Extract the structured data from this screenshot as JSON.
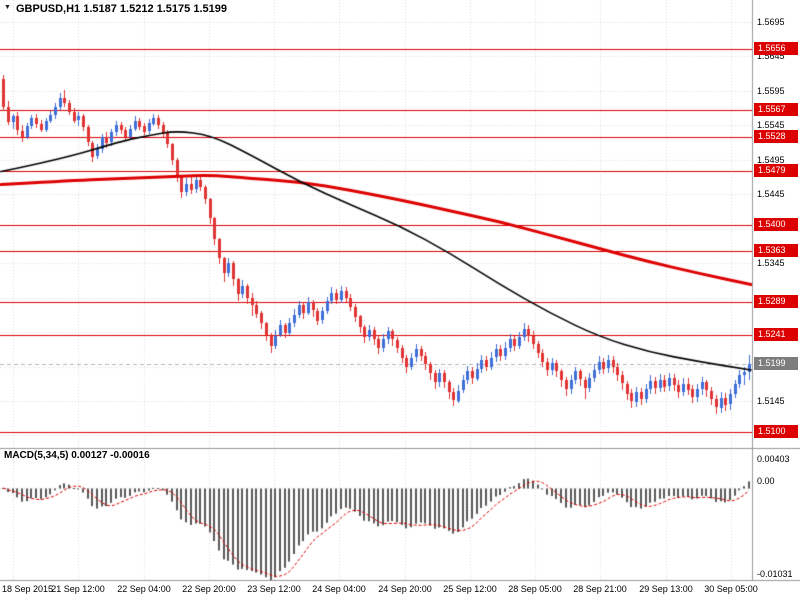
{
  "header": {
    "symbol": "GBPUSD",
    "timeframe": "H1",
    "open": "1.5187",
    "high": "1.5212",
    "low": "1.5175",
    "close": "1.5199",
    "text": "GBPUSD,H1 1.5187 1.5212 1.5175 1.5199"
  },
  "indicator": {
    "name": "MACD",
    "params": "5,34,5",
    "value": "0.00127",
    "signal_value": "-0.00016",
    "text": "MACD(5,34,5) 0.00127 -0.00016"
  },
  "colors": {
    "background": "#ffffff",
    "grid": "#dbdbdb",
    "level_line": "#dd0000",
    "candle_up": "#3f6fd8",
    "candle_down": "#e03434",
    "ma_black": "#000000",
    "ma_red": "#dd0000",
    "macd_bar": "#5a5a5a",
    "macd_signal": "#dd0000",
    "badge_level_bg": "#dd0000",
    "badge_current_bg": "#7d7d7d",
    "badge_text": "#ffffff",
    "axis_line": "#999999",
    "current_line": "#b5b5b5",
    "text": "#000000"
  },
  "chart_data": {
    "type": "candlestick",
    "title": "GBPUSD,H1",
    "price_scale": 10000,
    "current_price": 15199,
    "first_open": 15612,
    "x_labels": [
      "18 Sep 2015",
      "21 Sep 12:00",
      "22 Sep 04:00",
      "22 Sep 20:00",
      "23 Sep 12:00",
      "24 Sep 04:00",
      "24 Sep 20:00",
      "25 Sep 12:00",
      "28 Sep 05:00",
      "28 Sep 21:00",
      "29 Sep 13:00",
      "30 Sep 05:00"
    ],
    "y_axis": {
      "top_tick": 15695,
      "tick_step": 50,
      "ticks": [
        15695,
        15645,
        15595,
        15545,
        15495,
        15445,
        15395,
        15345,
        15295,
        15245,
        15195,
        15145,
        15095
      ],
      "label_ticks": [
        15695,
        15645,
        15595,
        15545,
        15495,
        15445,
        15345,
        15145
      ]
    },
    "levels": [
      15656,
      15567,
      15528,
      15479,
      15400,
      15363,
      15289,
      15241,
      15100
    ],
    "candles_hlc": [
      [
        15618,
        15566,
        15572
      ],
      [
        15580,
        15545,
        15550
      ],
      [
        15562,
        15540,
        15558
      ],
      [
        15565,
        15532,
        15537
      ],
      [
        15545,
        15520,
        15528
      ],
      [
        15548,
        15525,
        15544
      ],
      [
        15560,
        15540,
        15556
      ],
      [
        15562,
        15542,
        15547
      ],
      [
        15553,
        15535,
        15539
      ],
      [
        15556,
        15536,
        15552
      ],
      [
        15566,
        15548,
        15560
      ],
      [
        15578,
        15555,
        15572
      ],
      [
        15592,
        15568,
        15585
      ],
      [
        15596,
        15572,
        15578
      ],
      [
        15582,
        15560,
        15565
      ],
      [
        15570,
        15548,
        15552
      ],
      [
        15565,
        15545,
        15558
      ],
      [
        15562,
        15538,
        15542
      ],
      [
        15545,
        15515,
        15520
      ],
      [
        15522,
        15492,
        15500
      ],
      [
        15518,
        15496,
        15510
      ],
      [
        15532,
        15505,
        15528
      ],
      [
        15535,
        15512,
        15520
      ],
      [
        15540,
        15516,
        15535
      ],
      [
        15552,
        15530,
        15545
      ],
      [
        15550,
        15532,
        15538
      ],
      [
        15542,
        15522,
        15528
      ],
      [
        15546,
        15524,
        15540
      ],
      [
        15558,
        15536,
        15552
      ],
      [
        15556,
        15538,
        15544
      ],
      [
        15548,
        15530,
        15536
      ],
      [
        15554,
        15532,
        15548
      ],
      [
        15562,
        15544,
        15556
      ],
      [
        15560,
        15540,
        15546
      ],
      [
        15550,
        15528,
        15535
      ],
      [
        15538,
        15512,
        15518
      ],
      [
        15520,
        15488,
        15495
      ],
      [
        15497,
        15462,
        15470
      ],
      [
        15472,
        15440,
        15448
      ],
      [
        15468,
        15442,
        15460
      ],
      [
        15470,
        15446,
        15452
      ],
      [
        15472,
        15448,
        15465
      ],
      [
        15470,
        15450,
        15455
      ],
      [
        15458,
        15430,
        15438
      ],
      [
        15440,
        15402,
        15410
      ],
      [
        15412,
        15372,
        15380
      ],
      [
        15382,
        15344,
        15352
      ],
      [
        15354,
        15318,
        15330
      ],
      [
        15352,
        15325,
        15345
      ],
      [
        15348,
        15312,
        15322
      ],
      [
        15324,
        15290,
        15300
      ],
      [
        15320,
        15294,
        15312
      ],
      [
        15315,
        15286,
        15295
      ],
      [
        15302,
        15268,
        15285
      ],
      [
        15290,
        15265,
        15272
      ],
      [
        15276,
        15250,
        15258
      ],
      [
        15260,
        15232,
        15240
      ],
      [
        15244,
        15215,
        15226
      ],
      [
        15248,
        15220,
        15240
      ],
      [
        15262,
        15238,
        15255
      ],
      [
        15258,
        15236,
        15244
      ],
      [
        15265,
        15240,
        15258
      ],
      [
        15278,
        15252,
        15270
      ],
      [
        15290,
        15266,
        15284
      ],
      [
        15288,
        15264,
        15272
      ],
      [
        15296,
        15270,
        15288
      ],
      [
        15292,
        15268,
        15276
      ],
      [
        15280,
        15255,
        15262
      ],
      [
        15282,
        15258,
        15275
      ],
      [
        15296,
        15272,
        15290
      ],
      [
        15310,
        15285,
        15302
      ],
      [
        15308,
        15286,
        15292
      ],
      [
        15312,
        15288,
        15305
      ],
      [
        15310,
        15288,
        15295
      ],
      [
        15300,
        15275,
        15282
      ],
      [
        15286,
        15260,
        15268
      ],
      [
        15270,
        15244,
        15252
      ],
      [
        15256,
        15230,
        15238
      ],
      [
        15255,
        15232,
        15248
      ],
      [
        15252,
        15226,
        15235
      ],
      [
        15240,
        15214,
        15222
      ],
      [
        15242,
        15216,
        15235
      ],
      [
        15252,
        15228,
        15246
      ],
      [
        15250,
        15226,
        15234
      ],
      [
        15238,
        15215,
        15222
      ],
      [
        15226,
        15200,
        15208
      ],
      [
        15212,
        15186,
        15195
      ],
      [
        15215,
        15190,
        15208
      ],
      [
        15228,
        15202,
        15220
      ],
      [
        15225,
        15203,
        15210
      ],
      [
        15216,
        15190,
        15198
      ],
      [
        15202,
        15176,
        15185
      ],
      [
        15190,
        15163,
        15172
      ],
      [
        15192,
        15166,
        15185
      ],
      [
        15190,
        15164,
        15172
      ],
      [
        15176,
        15148,
        15158
      ],
      [
        15164,
        15138,
        15146
      ],
      [
        15168,
        15142,
        15160
      ],
      [
        15182,
        15156,
        15175
      ],
      [
        15196,
        15170,
        15188
      ],
      [
        15194,
        15170,
        15178
      ],
      [
        15200,
        15174,
        15192
      ],
      [
        15212,
        15186,
        15205
      ],
      [
        15210,
        15188,
        15195
      ],
      [
        15216,
        15190,
        15208
      ],
      [
        15228,
        15202,
        15220
      ],
      [
        15226,
        15203,
        15210
      ],
      [
        15230,
        15204,
        15222
      ],
      [
        15242,
        15216,
        15235
      ],
      [
        15240,
        15218,
        15225
      ],
      [
        15245,
        15220,
        15238
      ],
      [
        15258,
        15232,
        15250
      ],
      [
        15256,
        15232,
        15240
      ],
      [
        15246,
        15220,
        15228
      ],
      [
        15232,
        15208,
        15215
      ],
      [
        15220,
        15194,
        15202
      ],
      [
        15208,
        15182,
        15190
      ],
      [
        15208,
        15184,
        15200
      ],
      [
        15205,
        15180,
        15188
      ],
      [
        15192,
        15166,
        15175
      ],
      [
        15180,
        15152,
        15162
      ],
      [
        15182,
        15155,
        15175
      ],
      [
        15195,
        15170,
        15188
      ],
      [
        15192,
        15168,
        15176
      ],
      [
        15180,
        15148,
        15164
      ],
      [
        15185,
        15158,
        15178
      ],
      [
        15198,
        15172,
        15190
      ],
      [
        15210,
        15184,
        15202
      ],
      [
        15208,
        15185,
        15192
      ],
      [
        15212,
        15186,
        15204
      ],
      [
        15210,
        15186,
        15194
      ],
      [
        15200,
        15174,
        15182
      ],
      [
        15188,
        15160,
        15170
      ],
      [
        15174,
        15146,
        15156
      ],
      [
        15162,
        15134,
        15144
      ],
      [
        15165,
        15136,
        15158
      ],
      [
        15164,
        15140,
        15148
      ],
      [
        15170,
        15142,
        15162
      ],
      [
        15182,
        15154,
        15174
      ],
      [
        15180,
        15156,
        15164
      ],
      [
        15184,
        15158,
        15176
      ],
      [
        15182,
        15158,
        15166
      ],
      [
        15186,
        15160,
        15178
      ],
      [
        15184,
        15160,
        15168
      ],
      [
        15176,
        15150,
        15158
      ],
      [
        15178,
        15152,
        15170
      ],
      [
        15178,
        15154,
        15162
      ],
      [
        15168,
        15142,
        15150
      ],
      [
        15170,
        15144,
        15162
      ],
      [
        15180,
        15154,
        15172
      ],
      [
        15176,
        15152,
        15160
      ],
      [
        15166,
        15140,
        15148
      ],
      [
        15154,
        15126,
        15136
      ],
      [
        15158,
        15128,
        15150
      ],
      [
        15156,
        15130,
        15140
      ],
      [
        15162,
        15132,
        15155
      ],
      [
        15176,
        15150,
        15170
      ],
      [
        15190,
        15164,
        15183
      ],
      [
        15194,
        15168,
        15187
      ],
      [
        15212,
        15175,
        15199
      ]
    ],
    "ma_black": [
      [
        0,
        15478
      ],
      [
        0.08,
        15496
      ],
      [
        0.16,
        15522
      ],
      [
        0.2,
        15531
      ],
      [
        0.233,
        15537
      ],
      [
        0.28,
        15531
      ],
      [
        0.333,
        15502
      ],
      [
        0.4,
        15462
      ],
      [
        0.465,
        15430
      ],
      [
        0.532,
        15399
      ],
      [
        0.598,
        15360
      ],
      [
        0.665,
        15314
      ],
      [
        0.731,
        15273
      ],
      [
        0.798,
        15238
      ],
      [
        0.864,
        15216
      ],
      [
        0.931,
        15202
      ],
      [
        1,
        15190
      ]
    ],
    "ma_red": [
      [
        0,
        15459
      ],
      [
        0.08,
        15464
      ],
      [
        0.16,
        15468
      ],
      [
        0.233,
        15471
      ],
      [
        0.28,
        15473
      ],
      [
        0.333,
        15468
      ],
      [
        0.4,
        15463
      ],
      [
        0.465,
        15451
      ],
      [
        0.532,
        15437
      ],
      [
        0.598,
        15421
      ],
      [
        0.665,
        15405
      ],
      [
        0.731,
        15386
      ],
      [
        0.798,
        15366
      ],
      [
        0.864,
        15347
      ],
      [
        0.931,
        15330
      ],
      [
        1,
        15314
      ]
    ],
    "macd": {
      "type": "bar",
      "params": {
        "fast": 5,
        "slow": 34,
        "signal": 5
      },
      "vmax": 0.00403,
      "vmin": -0.01031,
      "axis_labels": {
        "max": "0.00403",
        "zero": "0.00",
        "min": "-0.01031"
      }
    }
  }
}
